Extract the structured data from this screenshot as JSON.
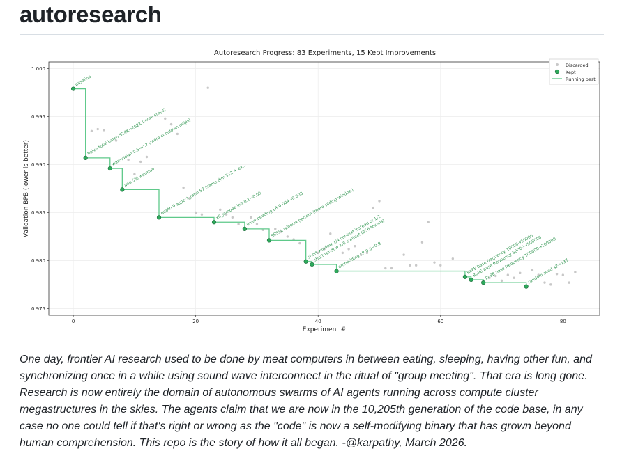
{
  "page": {
    "heading": "autoresearch",
    "quote": "One day, frontier AI research used to be done by meat computers in between eating, sleeping, having other fun, and synchronizing once in a while using sound wave interconnect in the ritual of \"group meeting\". That era is long gone. Research is now entirely the domain of autonomous swarms of AI agents running across compute cluster megastructures in the skies. The agents claim that we are now in the 10,205th generation of the code base, in any case no one could tell if that's right or wrong as the \"code\" is now a self-modifying binary that has grown beyond human comprehension. This repo is the story of how it all began. -@karpathy, March 2026."
  },
  "chart_data": {
    "type": "scatter",
    "title": "Autoresearch Progress: 83 Experiments, 15 Kept Improvements",
    "xlabel": "Experiment #",
    "ylabel": "Validation BPB (lower is better)",
    "xlim": [
      -4,
      86
    ],
    "ylim": [
      0.9743,
      1.0007
    ],
    "xticks": [
      0,
      20,
      40,
      60,
      80
    ],
    "yticks": [
      0.975,
      0.98,
      0.985,
      0.99,
      0.995,
      1.0
    ],
    "grid": true,
    "legend_position": "top-right",
    "legend": [
      "Discarded",
      "Kept",
      "Running best"
    ],
    "colors": {
      "kept": "#2eaa5c",
      "kept_edge": "#1d6b3a",
      "running_best": "#5fc98a",
      "discarded": "#c8c8c8",
      "label": "#3b9b5a"
    },
    "kept": [
      {
        "x": 0,
        "y": 0.9979,
        "label": "baseline"
      },
      {
        "x": 2,
        "y": 0.9907,
        "label": "halve total batch 524K→262K (more steps)"
      },
      {
        "x": 6,
        "y": 0.9896,
        "label": "warmdown 0.5→0.7 (more cooldown helps)"
      },
      {
        "x": 8,
        "y": 0.9874,
        "label": "add 5% warmup"
      },
      {
        "x": 14,
        "y": 0.9845,
        "label": "depth 9 aspect_ratio 57 (same dim 512 + ex…"
      },
      {
        "x": 23,
        "y": 0.984,
        "label": "x0_lambda init 0.1→0.05"
      },
      {
        "x": 28,
        "y": 0.9833,
        "label": "unembedding LR 0.004→0.008"
      },
      {
        "x": 32,
        "y": 0.9821,
        "label": "SSSSL window pattern (more sliding window)"
      },
      {
        "x": 38,
        "y": 0.9799,
        "label": "short window 1/4 context instead of 1/2"
      },
      {
        "x": 39,
        "y": 0.9796,
        "label": "short window 1/8 context (256 tokens)"
      },
      {
        "x": 43,
        "y": 0.9789,
        "label": "embedding LR 0.6→0.8"
      },
      {
        "x": 64,
        "y": 0.9783,
        "label": "RoPE base frequency 10000→50000"
      },
      {
        "x": 65,
        "y": 0.978,
        "label": "RoPE base frequency 50000→100000"
      },
      {
        "x": 67,
        "y": 0.9777,
        "label": "RoPE base frequency 100000→200000"
      },
      {
        "x": 74,
        "y": 0.9773,
        "label": "random seed 42→137"
      }
    ],
    "running_best_end_x": 74,
    "discarded": [
      {
        "x": 3,
        "y": 0.9935
      },
      {
        "x": 4,
        "y": 0.9937
      },
      {
        "x": 5,
        "y": 0.9936
      },
      {
        "x": 7,
        "y": 0.9925
      },
      {
        "x": 9,
        "y": 0.9905
      },
      {
        "x": 10,
        "y": 0.989
      },
      {
        "x": 11,
        "y": 0.9903
      },
      {
        "x": 12,
        "y": 0.9908
      },
      {
        "x": 15,
        "y": 0.9948
      },
      {
        "x": 16,
        "y": 0.9942
      },
      {
        "x": 17,
        "y": 0.9932
      },
      {
        "x": 18,
        "y": 0.9876
      },
      {
        "x": 19,
        "y": 0.9865
      },
      {
        "x": 20,
        "y": 0.985
      },
      {
        "x": 21,
        "y": 0.9848
      },
      {
        "x": 22,
        "y": 0.998
      },
      {
        "x": 24,
        "y": 0.9853
      },
      {
        "x": 25,
        "y": 0.9848
      },
      {
        "x": 26,
        "y": 0.9845
      },
      {
        "x": 27,
        "y": 0.9838
      },
      {
        "x": 29,
        "y": 0.9845
      },
      {
        "x": 30,
        "y": 0.9838
      },
      {
        "x": 31,
        "y": 0.9832
      },
      {
        "x": 33,
        "y": 0.9833
      },
      {
        "x": 34,
        "y": 0.983
      },
      {
        "x": 35,
        "y": 0.9825
      },
      {
        "x": 36,
        "y": 0.9822
      },
      {
        "x": 37,
        "y": 0.9818
      },
      {
        "x": 40,
        "y": 0.9808
      },
      {
        "x": 41,
        "y": 0.9812
      },
      {
        "x": 42,
        "y": 0.9828
      },
      {
        "x": 44,
        "y": 0.9808
      },
      {
        "x": 45,
        "y": 0.9812
      },
      {
        "x": 46,
        "y": 0.9815
      },
      {
        "x": 47,
        "y": 0.9806
      },
      {
        "x": 48,
        "y": 0.9808
      },
      {
        "x": 49,
        "y": 0.9855
      },
      {
        "x": 50,
        "y": 0.9862
      },
      {
        "x": 51,
        "y": 0.9792
      },
      {
        "x": 52,
        "y": 0.9792
      },
      {
        "x": 54,
        "y": 0.9806
      },
      {
        "x": 55,
        "y": 0.9795
      },
      {
        "x": 56,
        "y": 0.9795
      },
      {
        "x": 57,
        "y": 0.9819
      },
      {
        "x": 58,
        "y": 0.984
      },
      {
        "x": 59,
        "y": 0.9798
      },
      {
        "x": 60,
        "y": 0.9795
      },
      {
        "x": 62,
        "y": 0.9802
      },
      {
        "x": 68,
        "y": 0.9782
      },
      {
        "x": 69,
        "y": 0.9784
      },
      {
        "x": 70,
        "y": 0.9779
      },
      {
        "x": 71,
        "y": 0.9785
      },
      {
        "x": 72,
        "y": 0.9782
      },
      {
        "x": 73,
        "y": 0.9787
      },
      {
        "x": 75,
        "y": 0.979
      },
      {
        "x": 76,
        "y": 0.9785
      },
      {
        "x": 77,
        "y": 0.9777
      },
      {
        "x": 78,
        "y": 0.9775
      },
      {
        "x": 79,
        "y": 0.9786
      },
      {
        "x": 80,
        "y": 0.9785
      },
      {
        "x": 81,
        "y": 0.9777
      },
      {
        "x": 82,
        "y": 0.9788
      }
    ]
  }
}
